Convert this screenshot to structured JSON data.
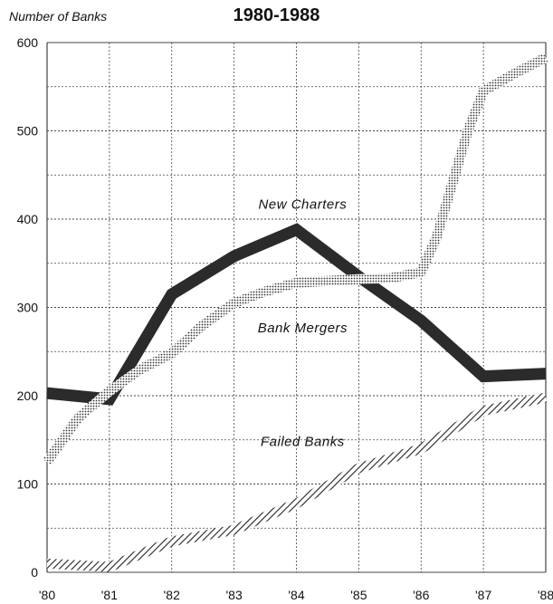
{
  "chart_data": {
    "type": "line",
    "title": "1980-1988",
    "ylabel": "Number of Banks",
    "xlabel": "",
    "categories": [
      "'80",
      "'81",
      "'82",
      "'83",
      "'84",
      "'85",
      "'86",
      "'87",
      "'88"
    ],
    "ylim": [
      0,
      600
    ],
    "yticks": [
      0,
      100,
      200,
      300,
      400,
      500,
      600
    ],
    "grid": true,
    "legend": "inline labels",
    "series": [
      {
        "name": "New Charters",
        "style": "solid-thick",
        "color": "#2b2b2b",
        "x": [
          0,
          1,
          2,
          3,
          4,
          5,
          6,
          7,
          8
        ],
        "values": [
          203,
          196,
          315,
          358,
          388,
          335,
          285,
          222,
          225
        ]
      },
      {
        "name": "Bank Mergers",
        "style": "dotted-band",
        "color": "#555555",
        "x": [
          0,
          0.5,
          1,
          1.5,
          2,
          2.5,
          3,
          3.5,
          4,
          4.5,
          5,
          5.5,
          6,
          6.25,
          6.5,
          6.75,
          7,
          7.5,
          8
        ],
        "values": [
          125,
          175,
          205,
          230,
          248,
          280,
          305,
          318,
          328,
          330,
          332,
          333,
          340,
          380,
          440,
          500,
          545,
          565,
          583
        ]
      },
      {
        "name": "Failed Banks",
        "style": "hatched-band",
        "color": "#333333",
        "x": [
          0,
          1,
          2,
          3,
          4,
          5,
          6,
          7,
          8
        ],
        "values": [
          10,
          6,
          35,
          48,
          78,
          118,
          140,
          183,
          198
        ]
      }
    ],
    "annotations": [
      {
        "text": "New Charters",
        "x": 4.1,
        "y": 412
      },
      {
        "text": "Bank Mergers",
        "x": 4.1,
        "y": 272
      },
      {
        "text": "Failed Banks",
        "x": 4.1,
        "y": 143
      }
    ]
  }
}
